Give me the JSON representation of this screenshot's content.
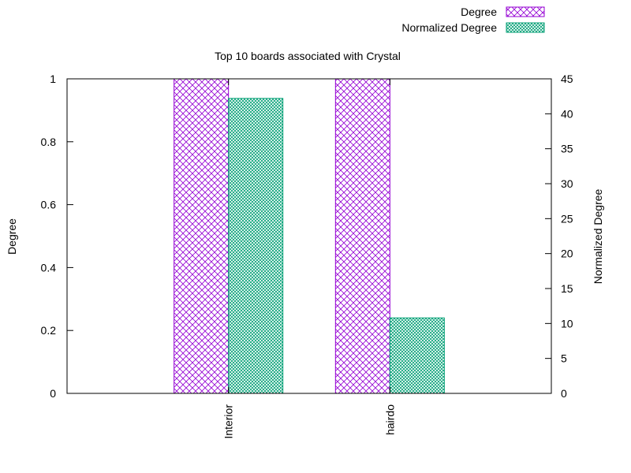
{
  "chart_data": {
    "type": "bar",
    "title": "Top 10 boards associated with Crystal",
    "categories": [
      "Interior",
      "hairdo"
    ],
    "series": [
      {
        "name": "Degree",
        "axis": "y",
        "values": [
          1,
          1
        ],
        "color": "#9400d3",
        "pattern": "crosshatch"
      },
      {
        "name": "Normalized Degree",
        "axis": "y2",
        "values": [
          42.2,
          10.8
        ],
        "color": "#009e73",
        "pattern": "fine-crosshatch"
      }
    ],
    "ylabel": "Degree",
    "y2label": "Normalized Degree",
    "ylim": [
      0,
      1
    ],
    "y2lim": [
      0,
      45
    ],
    "yticks": [
      "0",
      "0.2",
      "0.4",
      "0.6",
      "0.8",
      "1"
    ],
    "y2ticks": [
      "0",
      "5",
      "10",
      "15",
      "20",
      "25",
      "30",
      "35",
      "40",
      "45"
    ],
    "legend_position": "top-right",
    "grid": false
  }
}
